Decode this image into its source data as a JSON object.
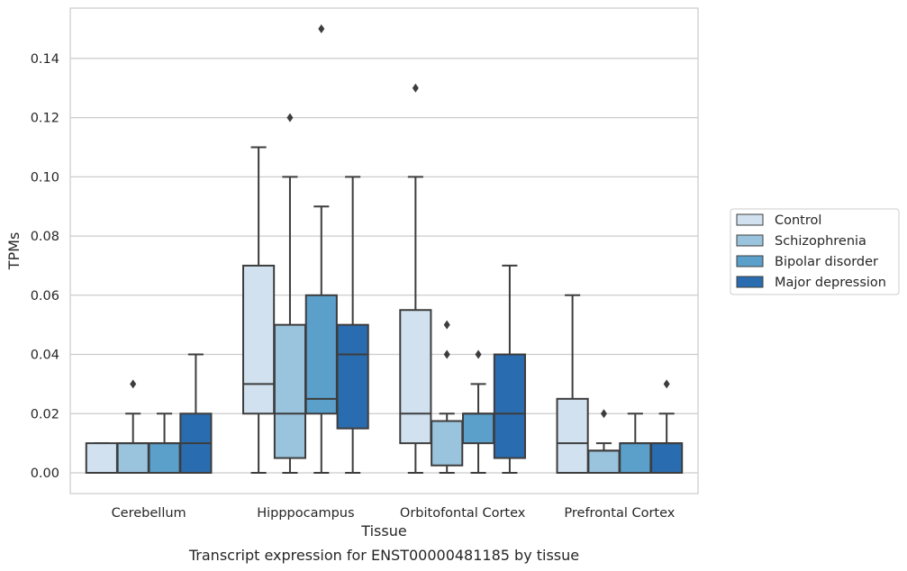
{
  "caption": "Transcript expression for ENST00000481185 by tissue",
  "chart_data": {
    "type": "box",
    "xlabel": "Tissue",
    "ylabel": "TPMs",
    "ylim": [
      -0.007,
      0.157
    ],
    "yticks": [
      "0.00",
      "0.02",
      "0.04",
      "0.06",
      "0.08",
      "0.10",
      "0.12",
      "0.14"
    ],
    "grid": "horizontal",
    "legend_position": "right",
    "categories": [
      "Cerebellum",
      "Hipppocampus",
      "Orbitofontal Cortex",
      "Prefrontal Cortex"
    ],
    "series": [
      {
        "name": "Control",
        "color": "#d1e1f0",
        "boxes": [
          {
            "whislo": 0.0,
            "q1": 0.0,
            "med": 0.0,
            "q3": 0.01,
            "whishi": 0.01,
            "fliers": []
          },
          {
            "whislo": 0.0,
            "q1": 0.02,
            "med": 0.03,
            "q3": 0.07,
            "whishi": 0.11,
            "fliers": []
          },
          {
            "whislo": 0.0,
            "q1": 0.01,
            "med": 0.02,
            "q3": 0.055,
            "whishi": 0.1,
            "fliers": [
              0.13
            ]
          },
          {
            "whislo": 0.0,
            "q1": 0.0,
            "med": 0.01,
            "q3": 0.025,
            "whishi": 0.06,
            "fliers": []
          }
        ]
      },
      {
        "name": "Schizophrenia",
        "color": "#9ac3dd",
        "boxes": [
          {
            "whislo": 0.0,
            "q1": 0.0,
            "med": 0.01,
            "q3": 0.01,
            "whishi": 0.02,
            "fliers": [
              0.03
            ]
          },
          {
            "whislo": 0.0,
            "q1": 0.005,
            "med": 0.02,
            "q3": 0.05,
            "whishi": 0.1,
            "fliers": [
              0.12
            ]
          },
          {
            "whislo": 0.0,
            "q1": 0.0025,
            "med": 0.0175,
            "q3": 0.0175,
            "whishi": 0.02,
            "fliers": [
              0.04,
              0.05
            ]
          },
          {
            "whislo": 0.0,
            "q1": 0.0,
            "med": 0.0075,
            "q3": 0.0075,
            "whishi": 0.01,
            "fliers": [
              0.02
            ]
          }
        ]
      },
      {
        "name": "Bipolar disorder",
        "color": "#5b9fcb",
        "boxes": [
          {
            "whislo": 0.0,
            "q1": 0.0,
            "med": 0.01,
            "q3": 0.01,
            "whishi": 0.02,
            "fliers": []
          },
          {
            "whislo": 0.0,
            "q1": 0.02,
            "med": 0.025,
            "q3": 0.06,
            "whishi": 0.09,
            "fliers": [
              0.15
            ]
          },
          {
            "whislo": 0.0,
            "q1": 0.01,
            "med": 0.02,
            "q3": 0.02,
            "whishi": 0.03,
            "fliers": [
              0.04
            ]
          },
          {
            "whislo": 0.0,
            "q1": 0.0,
            "med": 0.01,
            "q3": 0.01,
            "whishi": 0.02,
            "fliers": []
          }
        ]
      },
      {
        "name": "Major depression",
        "color": "#2a6cb0",
        "boxes": [
          {
            "whislo": 0.0,
            "q1": 0.0,
            "med": 0.01,
            "q3": 0.02,
            "whishi": 0.04,
            "fliers": []
          },
          {
            "whislo": 0.0,
            "q1": 0.015,
            "med": 0.04,
            "q3": 0.05,
            "whishi": 0.1,
            "fliers": []
          },
          {
            "whislo": 0.0,
            "q1": 0.005,
            "med": 0.02,
            "q3": 0.04,
            "whishi": 0.07,
            "fliers": []
          },
          {
            "whislo": 0.0,
            "q1": 0.0,
            "med": 0.01,
            "q3": 0.01,
            "whishi": 0.02,
            "fliers": [
              0.03
            ]
          }
        ]
      }
    ]
  }
}
